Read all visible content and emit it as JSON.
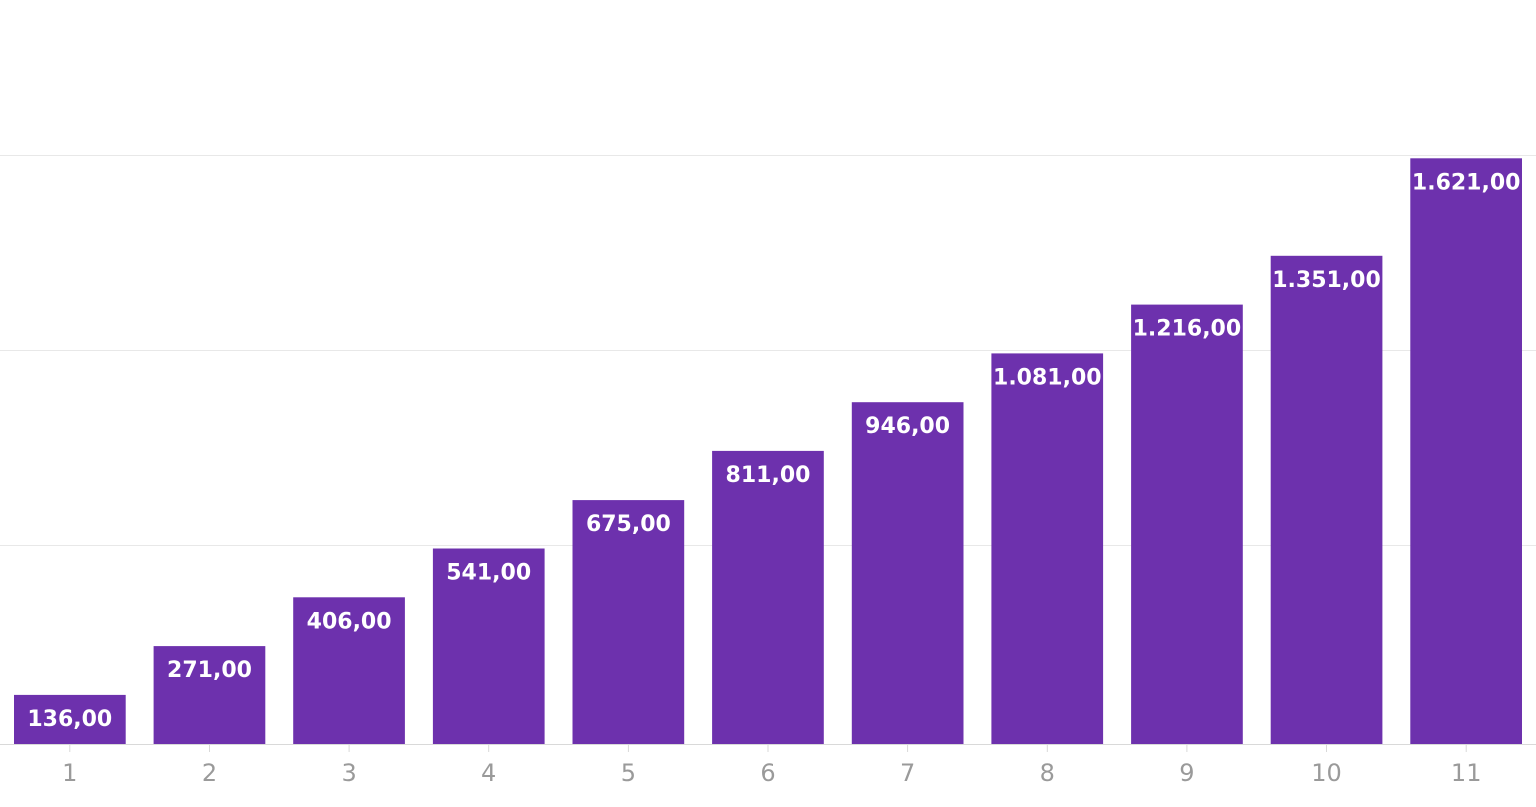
{
  "chart_data": {
    "type": "bar",
    "title": "",
    "xlabel": "",
    "ylabel": "",
    "categories": [
      "1",
      "2",
      "3",
      "4",
      "5",
      "6",
      "7",
      "8",
      "9",
      "10",
      "11"
    ],
    "series": [
      {
        "values": [
          136,
          271,
          406,
          541,
          675,
          811,
          946,
          1081,
          1216,
          1351,
          1621
        ],
        "data_labels": [
          "136,00",
          "271,00",
          "406,00",
          "541,00",
          "675,00",
          "811,00",
          "946,00",
          "1.081,00",
          "1.216,00",
          "1.351,00",
          "1.621,00"
        ]
      }
    ],
    "ylim": [
      0,
      1630
    ],
    "gridlines_at": [
      550,
      1090,
      1630
    ],
    "grid": true,
    "legend": "none",
    "y_axis_labels_visible": false,
    "colors": {
      "bar": "#6d31ad",
      "gridline": "#e8e8e8",
      "axis_line": "#d9d9d9",
      "tick_text": "#9a9a9a",
      "data_label_text": "#ffffff"
    }
  }
}
